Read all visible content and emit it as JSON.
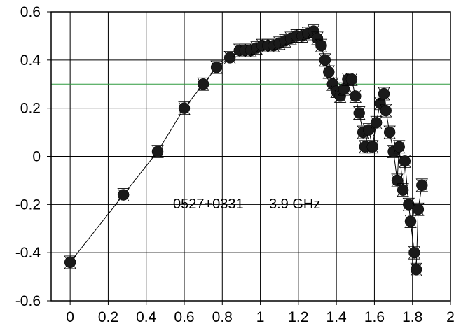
{
  "chart_data": {
    "type": "scatter",
    "title": "",
    "xlabel": "",
    "ylabel": "",
    "xlim": [
      -0.1,
      2.0
    ],
    "ylim": [
      -0.6,
      0.6
    ],
    "grid": true,
    "x_ticks": [
      0,
      0.2,
      0.4,
      0.6,
      0.8,
      1,
      1.2,
      1.4,
      1.6,
      1.8,
      2
    ],
    "x_tick_labels": [
      "0",
      "0.2",
      "0.4",
      "0.6",
      "0.8",
      "1",
      "1.2",
      "1.4",
      "1.6",
      "1.8",
      "2"
    ],
    "y_ticks": [
      0.6,
      0.4,
      0.2,
      0,
      -0.2,
      -0.4,
      -0.6
    ],
    "y_tick_labels": [
      "0.6",
      "0.4",
      "0.2",
      "0",
      "-0.2",
      "-0.4",
      "-0.6"
    ],
    "annotations": [
      {
        "text": "0527+0331",
        "x": 0.52,
        "y": -0.195
      },
      {
        "text": "3.9 GHz",
        "x": 1.0,
        "y": -0.195
      }
    ],
    "reference_line": {
      "y": 0.3,
      "color": "#2e9a3e"
    },
    "marker_color": "#1a1a1a",
    "series": [
      {
        "x": [
          0.0,
          0.28,
          0.46,
          0.6,
          0.7,
          0.77,
          0.84,
          0.89,
          0.92,
          0.95,
          0.98,
          1.01,
          1.04,
          1.07,
          1.1,
          1.13,
          1.16,
          1.19,
          1.22,
          1.25,
          1.28,
          1.3,
          1.32,
          1.34,
          1.36,
          1.38,
          1.4,
          1.42,
          1.44,
          1.46,
          1.48,
          1.5,
          1.52,
          1.54,
          1.55,
          1.57,
          1.59,
          1.61,
          1.63,
          1.65,
          1.66,
          1.68,
          1.7,
          1.72,
          1.73,
          1.75,
          1.76,
          1.78,
          1.79,
          1.81,
          1.82,
          1.83,
          1.85
        ],
        "y": [
          -0.44,
          -0.16,
          0.02,
          0.2,
          0.3,
          0.37,
          0.41,
          0.44,
          0.44,
          0.44,
          0.45,
          0.46,
          0.46,
          0.46,
          0.47,
          0.48,
          0.49,
          0.5,
          0.5,
          0.51,
          0.52,
          0.49,
          0.46,
          0.4,
          0.35,
          0.3,
          0.27,
          0.25,
          0.28,
          0.32,
          0.32,
          0.25,
          0.18,
          0.1,
          0.04,
          0.11,
          0.04,
          0.14,
          0.22,
          0.26,
          0.19,
          0.1,
          0.02,
          -0.1,
          0.04,
          -0.14,
          -0.02,
          -0.2,
          -0.27,
          -0.4,
          -0.47,
          -0.22,
          -0.12
        ]
      }
    ]
  }
}
